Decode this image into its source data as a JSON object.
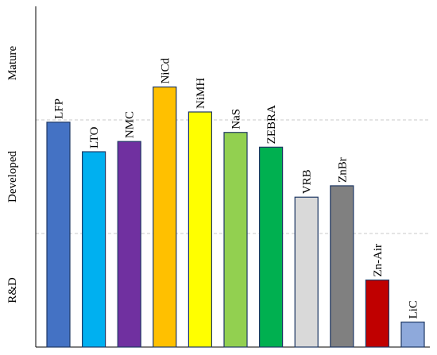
{
  "chart_data": {
    "type": "bar",
    "title": "",
    "xlabel": "",
    "ylabel": "",
    "ylim": [
      0,
      3
    ],
    "grid": "horizontal-dashed",
    "y_levels": [
      {
        "label": "R&D",
        "y": 0.5
      },
      {
        "label": "Developed",
        "y": 1.5
      },
      {
        "label": "Mature",
        "y": 2.5
      }
    ],
    "categories": [
      "LFP",
      "LTO",
      "NMC",
      "NiCd",
      "NiMH",
      "NaS",
      "ZEBRA",
      "VRB",
      "ZnBr",
      "Zn-Air",
      "LiC"
    ],
    "values": [
      1.98,
      1.72,
      1.81,
      2.29,
      2.07,
      1.89,
      1.76,
      1.32,
      1.42,
      0.59,
      0.22
    ],
    "colors": [
      "#4472C4",
      "#00B0F0",
      "#7030A0",
      "#FFC000",
      "#FFFF00",
      "#92D050",
      "#00B050",
      "#D9D9D9",
      "#808080",
      "#C00000",
      "#8EA9DB"
    ]
  }
}
